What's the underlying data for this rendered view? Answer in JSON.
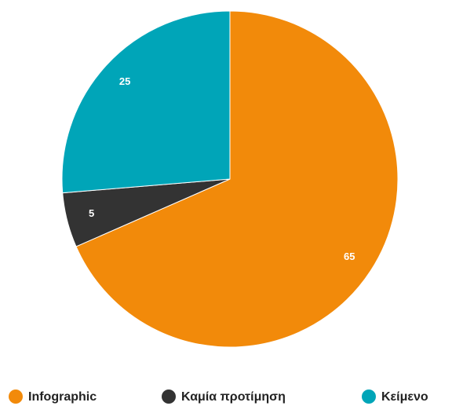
{
  "chart_data": {
    "type": "pie",
    "categories": [
      "Infographic",
      "Καμία προτίμηση",
      "Κείμενο"
    ],
    "values": [
      65,
      5,
      25
    ],
    "colors": [
      "#f28a0a",
      "#333333",
      "#00a5b8"
    ]
  }
}
